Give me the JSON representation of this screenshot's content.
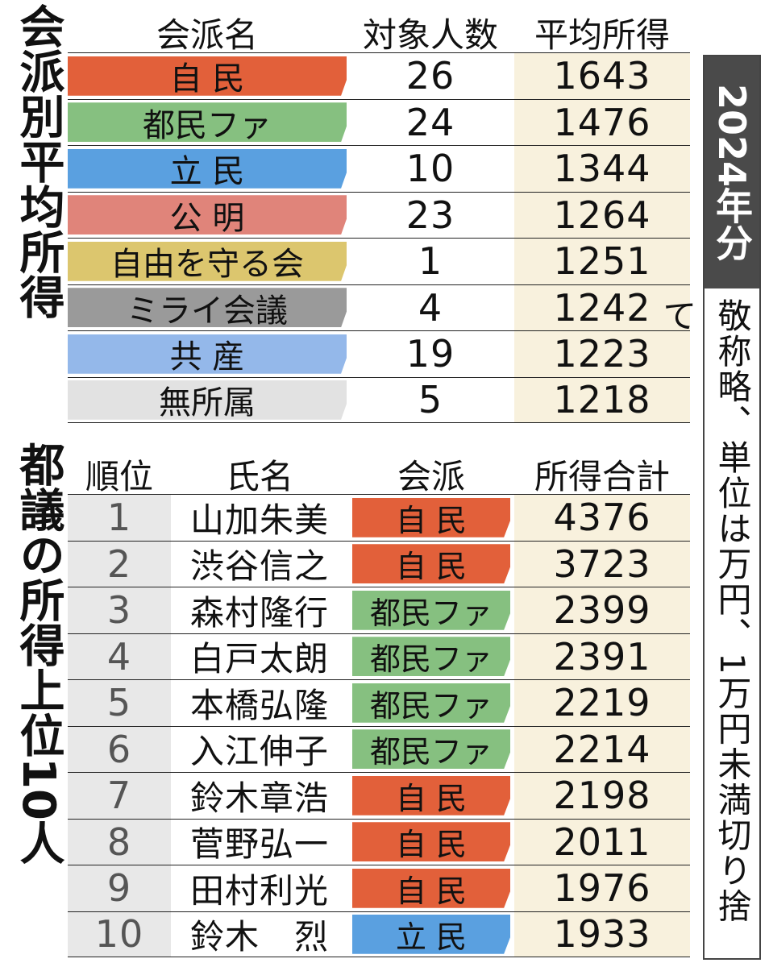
{
  "titles": {
    "party_average": "会派別平均所得",
    "top10": "都議の所得上位10人"
  },
  "side": {
    "year": "2024年分",
    "note": "敬称略、単位は万円、1万円未満切り捨て"
  },
  "colors": {
    "自民": "#e2603a",
    "都民ファ": "#86c080",
    "立民": "#5aa0e0",
    "公明": "#e0847a",
    "自由を守る会": "#dcc66e",
    "ミライ会議": "#9a9a9a",
    "共産": "#94b8ea",
    "無所属": "#e2e2e2",
    "average_bg": "#f8f1dd",
    "rank_bg": "#e8e8e8",
    "year_bg": "#4a4a4a"
  },
  "chart_data": [
    {
      "type": "table",
      "title": "会派別平均所得",
      "columns": [
        "会派名",
        "対象人数",
        "平均所得"
      ],
      "rows": [
        {
          "party": "自民",
          "party_label": "自 民",
          "count": 26,
          "average": 1643
        },
        {
          "party": "都民ファ",
          "party_label": "都民ファ",
          "count": 24,
          "average": 1476
        },
        {
          "party": "立民",
          "party_label": "立 民",
          "count": 10,
          "average": 1344
        },
        {
          "party": "公明",
          "party_label": "公 明",
          "count": 23,
          "average": 1264
        },
        {
          "party": "自由を守る会",
          "party_label": "自由を守る会",
          "count": 1,
          "average": 1251
        },
        {
          "party": "ミライ会議",
          "party_label": "ミライ会議",
          "count": 4,
          "average": 1242
        },
        {
          "party": "共産",
          "party_label": "共 産",
          "count": 19,
          "average": 1223
        },
        {
          "party": "無所属",
          "party_label": "無所属",
          "count": 5,
          "average": 1218
        }
      ]
    },
    {
      "type": "table",
      "title": "都議の所得上位10人",
      "columns": [
        "順位",
        "氏名",
        "会派",
        "所得合計"
      ],
      "rows": [
        {
          "rank": 1,
          "name": "山加朱美",
          "party": "自民",
          "party_label": "自 民",
          "total": 4376
        },
        {
          "rank": 2,
          "name": "渋谷信之",
          "party": "自民",
          "party_label": "自 民",
          "total": 3723
        },
        {
          "rank": 3,
          "name": "森村隆行",
          "party": "都民ファ",
          "party_label": "都民ファ",
          "total": 2399
        },
        {
          "rank": 4,
          "name": "白戸太朗",
          "party": "都民ファ",
          "party_label": "都民ファ",
          "total": 2391
        },
        {
          "rank": 5,
          "name": "本橋弘隆",
          "party": "都民ファ",
          "party_label": "都民ファ",
          "total": 2219
        },
        {
          "rank": 6,
          "name": "入江伸子",
          "party": "都民ファ",
          "party_label": "都民ファ",
          "total": 2214
        },
        {
          "rank": 7,
          "name": "鈴木章浩",
          "party": "自民",
          "party_label": "自 民",
          "total": 2198
        },
        {
          "rank": 8,
          "name": "菅野弘一",
          "party": "自民",
          "party_label": "自 民",
          "total": 2011
        },
        {
          "rank": 9,
          "name": "田村利光",
          "party": "自民",
          "party_label": "自 民",
          "total": 1976
        },
        {
          "rank": 10,
          "name": "鈴木　烈",
          "party": "立民",
          "party_label": "立 民",
          "total": 1933
        }
      ]
    }
  ]
}
